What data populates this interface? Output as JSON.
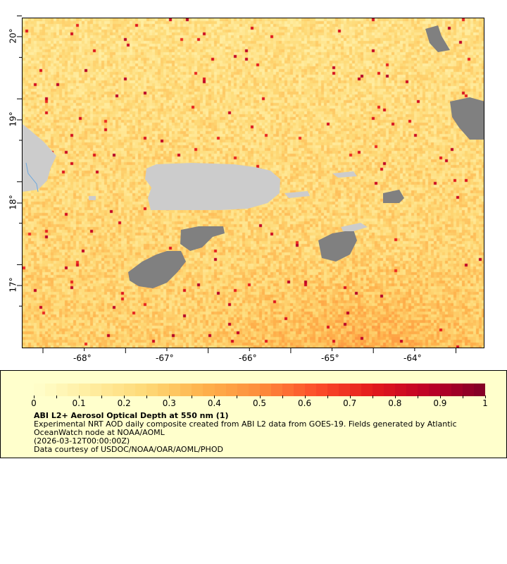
{
  "map": {
    "x_axis": {
      "ticks": [
        "-68°",
        "-67°",
        "-66°",
        "-65°",
        "-64°"
      ],
      "values": [
        -68,
        -67,
        -66,
        -65,
        -64
      ],
      "range": [
        -68.76,
        -63.16
      ]
    },
    "y_axis": {
      "ticks": [
        "20°",
        "19°",
        "18°",
        "17°"
      ],
      "values": [
        20,
        19,
        18,
        17
      ],
      "range": [
        16.24,
        20.23
      ]
    },
    "land_color": "#cccccc",
    "nodata_color": "#808080",
    "water_line_color": "#6fa8dc"
  },
  "legend": {
    "colorbar_ticks": [
      "0",
      "0.1",
      "0.2",
      "0.3",
      "0.4",
      "0.5",
      "0.6",
      "0.7",
      "0.8",
      "0.9",
      "1"
    ],
    "colorbar_range": [
      0,
      1
    ],
    "colors": [
      "#ffffcc",
      "#ffeda0",
      "#fed976",
      "#feb24c",
      "#fd8d3c",
      "#fc4e2a",
      "#e31a1c",
      "#bd0026",
      "#800026"
    ],
    "title": "ABI L2+ Aerosol Optical Depth at 550 nm (1)",
    "line1": "Experimental NRT AOD daily composite created from ABI L2 data from GOES-19. Fields generated by Atlantic",
    "line2": "OceanWatch node at NOAA/AOML",
    "line3": "(2026-03-12T00:00:00Z)",
    "line4": "Data courtesy of USDOC/NOAA/OAR/AOML/PHOD"
  }
}
